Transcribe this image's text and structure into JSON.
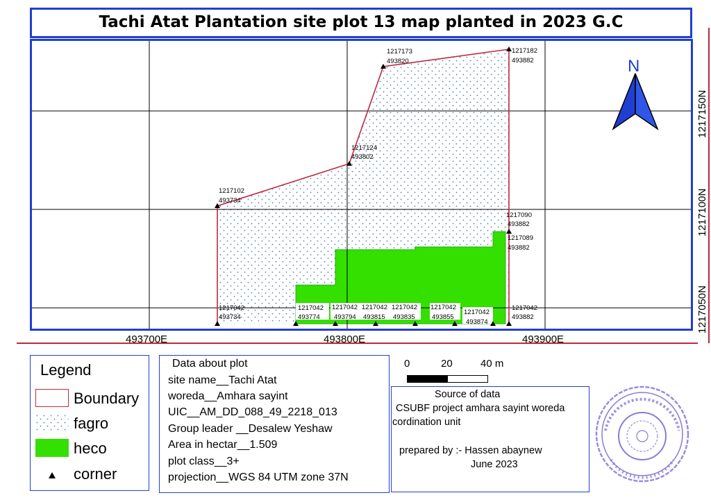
{
  "title": "Tachi Atat Plantation site plot 13 map planted in 2023 G.C",
  "axes": {
    "x_ticks": [
      "493700E",
      "493800E",
      "493900E"
    ],
    "y_ticks": [
      "1217050N",
      "1217100N",
      "1217150N"
    ]
  },
  "north_arrow": {
    "label": "N",
    "icon": "north-arrow-icon",
    "color": "#1f3fd0"
  },
  "corners": [
    {
      "n": "1217173",
      "e": "493820"
    },
    {
      "n": "1217182",
      "e": "493882"
    },
    {
      "n": "1217124",
      "e": "493802"
    },
    {
      "n": "1217102",
      "e": "493734"
    },
    {
      "n": "1217090",
      "e": "493882"
    },
    {
      "n": "1217089",
      "e": "493882"
    },
    {
      "n": "1217042",
      "e": "493734"
    },
    {
      "n": "1217042",
      "e": "493774"
    },
    {
      "n": "1217042",
      "e": "493794"
    },
    {
      "n": "1217042",
      "e": "493815"
    },
    {
      "n": "1217042",
      "e": "493835"
    },
    {
      "n": "1217042",
      "e": "493855"
    },
    {
      "n": "1217042",
      "e": "493874"
    },
    {
      "n": "1217042",
      "e": "493882"
    }
  ],
  "legend": {
    "title": "Legend",
    "items": [
      {
        "label": "Boundary",
        "color": "#c0283a"
      },
      {
        "label": "fagro",
        "color": "#4a7fc0"
      },
      {
        "label": "heco",
        "color": "#33e000"
      },
      {
        "label": "corner",
        "icon": "triangle-icon"
      }
    ]
  },
  "plot_info": {
    "heading": "Data about plot",
    "lines": [
      "site name__Tachi Atat",
      "woreda__Amhara sayint",
      "UIC__AM_DD_088_49_2218_013",
      "Group leader __Desalew Yeshaw",
      "Area in hectar__1.509",
      "plot class__3+",
      "projection__WGS 84 UTM zone 37N"
    ]
  },
  "scale_bar": {
    "labels": [
      "0",
      "20",
      "40 m"
    ]
  },
  "source": {
    "heading": "Source of data",
    "line1": "CSUBF project amhara sayint woreda",
    "line2": "cordination unit",
    "prepared": "prepared by :- Hassen abaynew",
    "date": "June 2023"
  },
  "stamp": {
    "icon": "official-seal-icon",
    "color": "#8a7ad8"
  }
}
